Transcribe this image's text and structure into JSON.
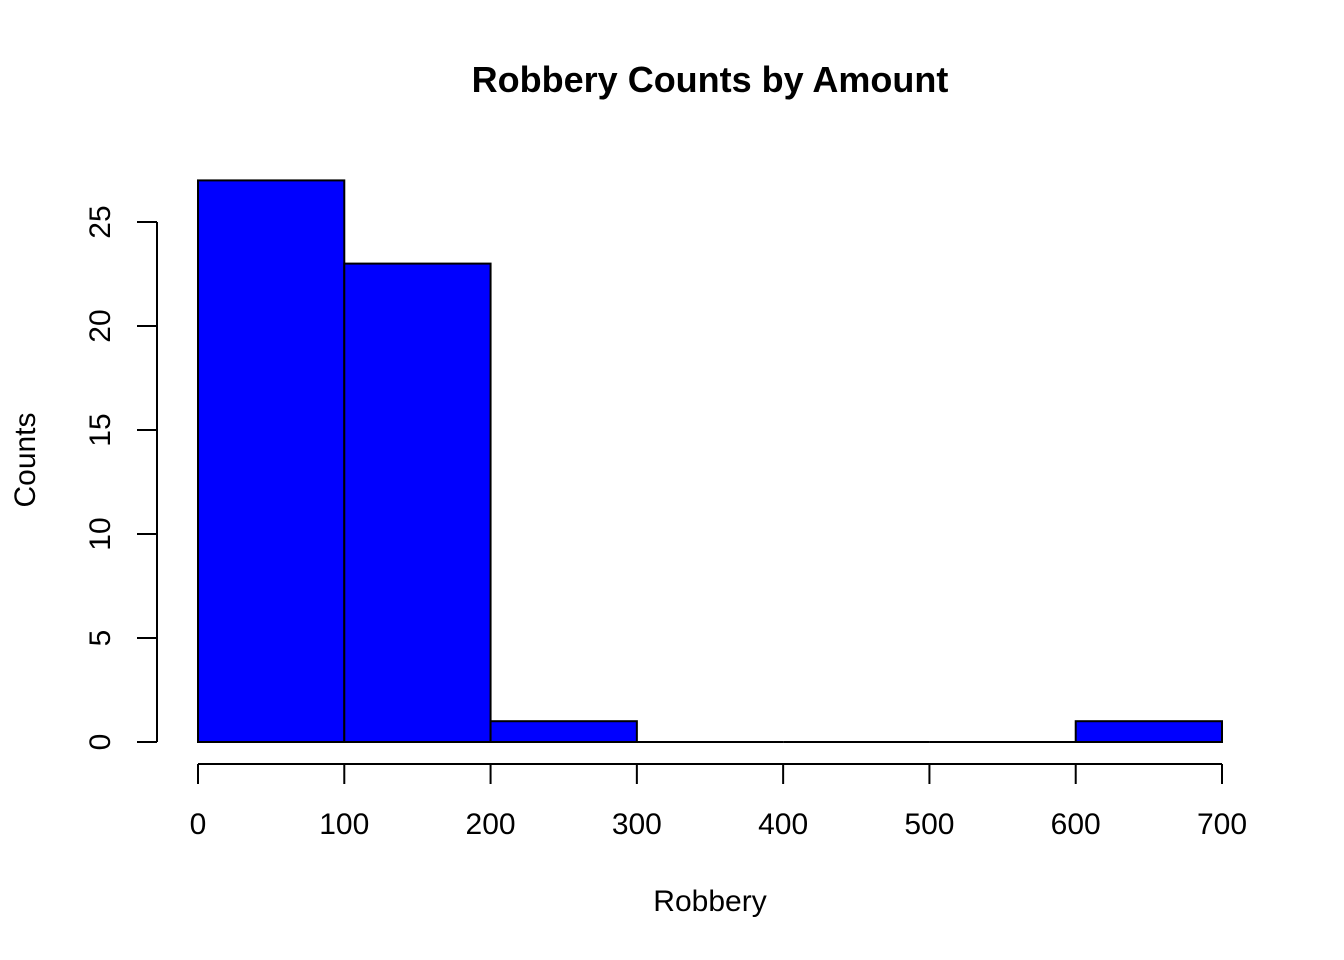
{
  "chart_data": {
    "type": "bar",
    "histogram": true,
    "title": "Robbery Counts by Amount",
    "xlabel": "Robbery",
    "ylabel": "Counts",
    "bins": [
      {
        "start": 0,
        "end": 100,
        "count": 27
      },
      {
        "start": 100,
        "end": 200,
        "count": 23
      },
      {
        "start": 200,
        "end": 300,
        "count": 1
      },
      {
        "start": 300,
        "end": 400,
        "count": 0
      },
      {
        "start": 400,
        "end": 500,
        "count": 0
      },
      {
        "start": 500,
        "end": 600,
        "count": 0
      },
      {
        "start": 600,
        "end": 700,
        "count": 1
      }
    ],
    "xlim": [
      0,
      700
    ],
    "ylim": [
      0,
      27
    ],
    "xticks": [
      "0",
      "100",
      "200",
      "300",
      "400",
      "500",
      "600",
      "700"
    ],
    "yticks": [
      "0",
      "5",
      "10",
      "15",
      "20",
      "25"
    ],
    "bar_color": "#0000ff",
    "grid": false
  }
}
